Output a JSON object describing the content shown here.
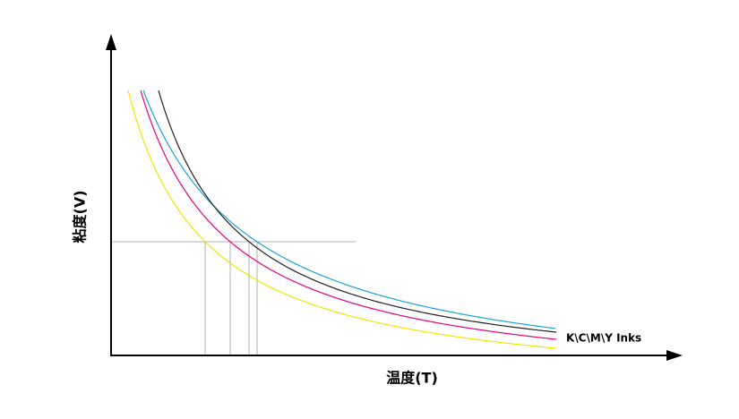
{
  "y_axis_label": "粘度(V)",
  "x_axis_label": "温度(T)",
  "legend_label": "K\\C\\M\\Y Inks"
}
